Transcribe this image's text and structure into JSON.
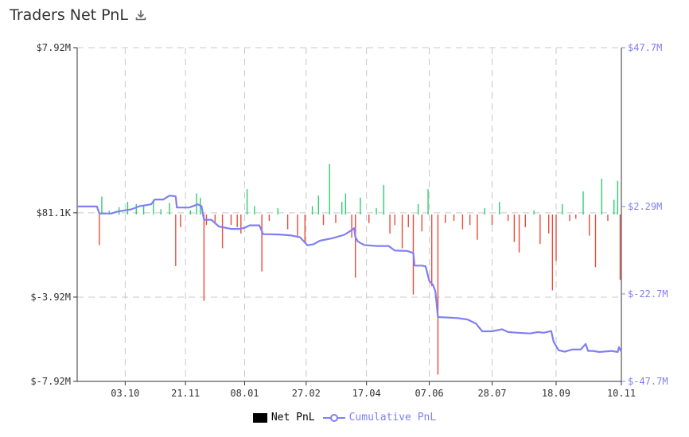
{
  "header": {
    "title": "Traders Net PnL",
    "download_icon": "download-icon"
  },
  "colors": {
    "positive": "#2ecc71",
    "negative": "#e74c3c",
    "cumulative": "#7f7ff5",
    "axis": "#333333",
    "grid": "#c8c8c8"
  },
  "legend": {
    "net_label": "Net PnL",
    "cum_label": "Cumulative PnL"
  },
  "chart_data": {
    "type": "bar",
    "title": "Traders Net PnL",
    "grid": true,
    "legend_position": "bottom",
    "x_start": "2022-08-25",
    "x_end": "2023-11-10",
    "x_ticks": [
      "03.10",
      "21.11",
      "08.01",
      "27.02",
      "17.04",
      "07.06",
      "28.07",
      "18.09",
      "10.11"
    ],
    "x_tick_dates": [
      "2022-10-03",
      "2022-11-21",
      "2023-01-08",
      "2023-02-27",
      "2023-04-17",
      "2023-06-07",
      "2023-07-28",
      "2023-09-18",
      "2023-11-10"
    ],
    "left_axis": {
      "ylim": [
        -7.92,
        7.92
      ],
      "unit": "$M",
      "ticks": [
        "$7.92M",
        "$81.1K",
        "$-3.92M",
        "$-7.92M"
      ],
      "tick_values": [
        7.92,
        0.0811,
        -3.92,
        -7.92
      ]
    },
    "right_axis": {
      "ylim": [
        -47.7,
        47.7
      ],
      "unit": "$M",
      "ticks": [
        "$47.7M",
        "$2.29M",
        "$-22.7M",
        "$-47.7M"
      ],
      "tick_values": [
        47.7,
        2.29,
        -22.7,
        -47.7
      ]
    },
    "series": [
      {
        "name": "Net PnL",
        "axis": "left",
        "points": [
          [
            "2022-09-12",
            -1.45
          ],
          [
            "2022-09-14",
            0.85
          ],
          [
            "2022-09-20",
            0.18
          ],
          [
            "2022-09-28",
            0.35
          ],
          [
            "2022-10-05",
            0.6
          ],
          [
            "2022-10-12",
            0.5
          ],
          [
            "2022-10-18",
            0.4
          ],
          [
            "2022-10-26",
            0.7
          ],
          [
            "2022-11-01",
            0.25
          ],
          [
            "2022-11-08",
            0.55
          ],
          [
            "2022-11-13",
            -2.45
          ],
          [
            "2022-11-17",
            -0.6
          ],
          [
            "2022-11-25",
            0.2
          ],
          [
            "2022-11-30",
            1.0
          ],
          [
            "2022-12-03",
            0.8
          ],
          [
            "2022-12-06",
            -4.1
          ],
          [
            "2022-12-08",
            -0.5
          ],
          [
            "2022-12-15",
            -0.4
          ],
          [
            "2022-12-21",
            -1.6
          ],
          [
            "2022-12-28",
            -0.5
          ],
          [
            "2023-01-02",
            -0.6
          ],
          [
            "2023-01-05",
            -0.9
          ],
          [
            "2023-01-10",
            1.2
          ],
          [
            "2023-01-16",
            0.4
          ],
          [
            "2023-01-22",
            -2.7
          ],
          [
            "2023-01-28",
            -0.3
          ],
          [
            "2023-02-04",
            0.3
          ],
          [
            "2023-02-12",
            -0.7
          ],
          [
            "2023-02-20",
            -1.1
          ],
          [
            "2023-02-26",
            -1.3
          ],
          [
            "2023-03-04",
            0.4
          ],
          [
            "2023-03-09",
            0.9
          ],
          [
            "2023-03-13",
            -0.5
          ],
          [
            "2023-03-18",
            2.4
          ],
          [
            "2023-03-23",
            -0.4
          ],
          [
            "2023-03-28",
            0.6
          ],
          [
            "2023-03-31",
            1.0
          ],
          [
            "2023-04-05",
            -1.1
          ],
          [
            "2023-04-08",
            -3.0
          ],
          [
            "2023-04-12",
            0.8
          ],
          [
            "2023-04-19",
            -0.4
          ],
          [
            "2023-04-25",
            0.3
          ],
          [
            "2023-05-01",
            1.4
          ],
          [
            "2023-05-06",
            -0.9
          ],
          [
            "2023-05-10",
            -0.5
          ],
          [
            "2023-05-16",
            -1.6
          ],
          [
            "2023-05-21",
            -0.6
          ],
          [
            "2023-05-25",
            -3.8
          ],
          [
            "2023-05-29",
            0.5
          ],
          [
            "2023-06-01",
            -0.8
          ],
          [
            "2023-06-06",
            1.2
          ],
          [
            "2023-06-09",
            -3.4
          ],
          [
            "2023-06-14",
            -7.6
          ],
          [
            "2023-06-20",
            -0.4
          ],
          [
            "2023-06-27",
            -0.3
          ],
          [
            "2023-07-04",
            -0.7
          ],
          [
            "2023-07-10",
            -0.5
          ],
          [
            "2023-07-16",
            -1.2
          ],
          [
            "2023-07-22",
            0.3
          ],
          [
            "2023-07-28",
            -0.5
          ],
          [
            "2023-08-03",
            0.6
          ],
          [
            "2023-08-10",
            -0.3
          ],
          [
            "2023-08-15",
            -1.3
          ],
          [
            "2023-08-19",
            -1.8
          ],
          [
            "2023-08-24",
            -0.6
          ],
          [
            "2023-08-31",
            0.2
          ],
          [
            "2023-09-05",
            -1.4
          ],
          [
            "2023-09-12",
            -0.9
          ],
          [
            "2023-09-15",
            -3.6
          ],
          [
            "2023-09-18",
            -2.2
          ],
          [
            "2023-09-23",
            0.5
          ],
          [
            "2023-09-29",
            -0.3
          ],
          [
            "2023-10-04",
            -0.2
          ],
          [
            "2023-10-10",
            1.1
          ],
          [
            "2023-10-15",
            -1.0
          ],
          [
            "2023-10-20",
            -2.5
          ],
          [
            "2023-10-25",
            1.7
          ],
          [
            "2023-10-30",
            -0.3
          ],
          [
            "2023-11-04",
            0.7
          ],
          [
            "2023-11-07",
            1.6
          ],
          [
            "2023-11-09",
            -3.1
          ]
        ]
      },
      {
        "name": "Cumulative PnL",
        "axis": "right",
        "points": [
          [
            "2022-08-25",
            2.29
          ],
          [
            "2022-09-10",
            2.29
          ],
          [
            "2022-09-12",
            0.3
          ],
          [
            "2022-09-22",
            0.3
          ],
          [
            "2022-09-26",
            0.8
          ],
          [
            "2022-10-08",
            1.5
          ],
          [
            "2022-10-15",
            2.4
          ],
          [
            "2022-10-24",
            2.9
          ],
          [
            "2022-10-27",
            4.3
          ],
          [
            "2022-11-03",
            4.3
          ],
          [
            "2022-11-08",
            5.4
          ],
          [
            "2022-11-13",
            5.2
          ],
          [
            "2022-11-14",
            2.0
          ],
          [
            "2022-11-24",
            2.0
          ],
          [
            "2022-12-01",
            2.9
          ],
          [
            "2022-12-04",
            2.4
          ],
          [
            "2022-12-06",
            -1.5
          ],
          [
            "2022-12-12",
            -1.5
          ],
          [
            "2022-12-18",
            -3.4
          ],
          [
            "2022-12-28",
            -4.1
          ],
          [
            "2023-01-04",
            -4.1
          ],
          [
            "2023-01-08",
            -3.8
          ],
          [
            "2023-01-12",
            -3.1
          ],
          [
            "2023-01-20",
            -3.1
          ],
          [
            "2023-01-23",
            -5.6
          ],
          [
            "2023-02-05",
            -5.7
          ],
          [
            "2023-02-15",
            -6.0
          ],
          [
            "2023-02-22",
            -6.5
          ],
          [
            "2023-02-28",
            -8.8
          ],
          [
            "2023-03-05",
            -8.5
          ],
          [
            "2023-03-10",
            -7.5
          ],
          [
            "2023-03-20",
            -6.8
          ],
          [
            "2023-03-30",
            -5.8
          ],
          [
            "2023-04-03",
            -4.9
          ],
          [
            "2023-04-07",
            -3.9
          ],
          [
            "2023-04-08",
            -6.5
          ],
          [
            "2023-04-10",
            -7.7
          ],
          [
            "2023-04-15",
            -8.7
          ],
          [
            "2023-04-25",
            -9.0
          ],
          [
            "2023-05-05",
            -9.0
          ],
          [
            "2023-05-08",
            -9.8
          ],
          [
            "2023-05-10",
            -10.3
          ],
          [
            "2023-05-20",
            -10.4
          ],
          [
            "2023-05-25",
            -11.0
          ],
          [
            "2023-05-26",
            -14.6
          ],
          [
            "2023-06-01",
            -14.6
          ],
          [
            "2023-06-04",
            -14.8
          ],
          [
            "2023-06-07",
            -19.0
          ],
          [
            "2023-06-10",
            -20.1
          ],
          [
            "2023-06-12",
            -22.0
          ],
          [
            "2023-06-14",
            -29.3
          ],
          [
            "2023-06-30",
            -29.6
          ],
          [
            "2023-07-08",
            -30.0
          ],
          [
            "2023-07-15",
            -31.2
          ],
          [
            "2023-07-20",
            -33.4
          ],
          [
            "2023-07-28",
            -33.4
          ],
          [
            "2023-08-05",
            -32.8
          ],
          [
            "2023-08-10",
            -33.6
          ],
          [
            "2023-08-18",
            -33.8
          ],
          [
            "2023-08-28",
            -34.0
          ],
          [
            "2023-09-03",
            -33.6
          ],
          [
            "2023-09-08",
            -33.8
          ],
          [
            "2023-09-14",
            -33.3
          ],
          [
            "2023-09-16",
            -36.4
          ],
          [
            "2023-09-20",
            -38.8
          ],
          [
            "2023-09-25",
            -39.2
          ],
          [
            "2023-10-01",
            -38.6
          ],
          [
            "2023-10-08",
            -38.6
          ],
          [
            "2023-10-12",
            -37.0
          ],
          [
            "2023-10-14",
            -39.0
          ],
          [
            "2023-10-18",
            -39.0
          ],
          [
            "2023-10-23",
            -39.3
          ],
          [
            "2023-11-02",
            -39.0
          ],
          [
            "2023-11-07",
            -39.3
          ],
          [
            "2023-11-08",
            -37.9
          ],
          [
            "2023-11-10",
            -39.2
          ]
        ]
      }
    ]
  }
}
